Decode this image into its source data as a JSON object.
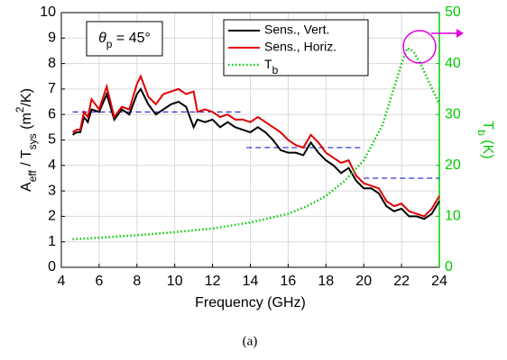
{
  "chart_data": {
    "type": "line",
    "xlabel": "Frequency (GHz)",
    "ylabel": [
      {
        "text": "A"
      },
      {
        "text": "eff",
        "sub": true
      },
      {
        "text": " / T"
      },
      {
        "text": "sys",
        "sub": true
      },
      {
        "text": " (m"
      },
      {
        "text": "2",
        "sup": true
      },
      {
        "text": "/K)"
      }
    ],
    "y2label": [
      {
        "text": "T"
      },
      {
        "text": "b",
        "sub": true
      },
      {
        "text": " (K)"
      }
    ],
    "annotation": [
      {
        "text": "θ",
        "italic": true
      },
      {
        "text": "p",
        "sub": true
      },
      {
        "text": " = 45°"
      }
    ],
    "caption": "(a)",
    "xlim": [
      4,
      24
    ],
    "xticks": [
      4,
      6,
      8,
      10,
      12,
      14,
      16,
      18,
      20,
      22,
      24
    ],
    "ylim": [
      0,
      10
    ],
    "yticks": [
      0,
      1,
      2,
      3,
      4,
      5,
      6,
      7,
      8,
      9,
      10
    ],
    "y2lim": [
      0,
      50
    ],
    "y2ticks": [
      0,
      10,
      20,
      30,
      40,
      50
    ],
    "y2color": "#00cc00",
    "grid": true,
    "legend": "top",
    "x": [
      4.6,
      4.8,
      5.0,
      5.2,
      5.4,
      5.6,
      6.0,
      6.4,
      6.8,
      7.2,
      7.6,
      8.0,
      8.2,
      8.6,
      9.0,
      9.4,
      9.8,
      10.2,
      10.6,
      11.0,
      11.2,
      11.6,
      12.0,
      12.4,
      12.8,
      13.2,
      13.6,
      14.0,
      14.4,
      14.8,
      15.2,
      15.6,
      16.0,
      16.4,
      16.8,
      17.2,
      17.6,
      18.0,
      18.4,
      18.8,
      19.2,
      19.6,
      20.0,
      20.4,
      20.8,
      21.2,
      21.6,
      22.0,
      22.4,
      22.8,
      23.2,
      23.6,
      24.0
    ],
    "series": [
      {
        "name": "Sens., Vert.",
        "color": "#000000",
        "style": "solid",
        "values": [
          5.2,
          5.3,
          5.3,
          5.9,
          5.7,
          6.2,
          6.1,
          6.8,
          5.8,
          6.2,
          6.0,
          6.8,
          7.0,
          6.4,
          6.0,
          6.2,
          6.4,
          6.5,
          6.3,
          5.5,
          5.8,
          5.7,
          5.8,
          5.5,
          5.7,
          5.5,
          5.4,
          5.3,
          5.5,
          5.3,
          5.0,
          4.6,
          4.5,
          4.5,
          4.4,
          4.9,
          4.5,
          4.2,
          4.0,
          3.7,
          3.9,
          3.4,
          3.1,
          3.1,
          2.9,
          2.4,
          2.2,
          2.3,
          2.0,
          2.0,
          1.9,
          2.1,
          2.6
        ]
      },
      {
        "name": "Sens., Horiz.",
        "color": "#e00000",
        "style": "solid",
        "values": [
          5.3,
          5.4,
          5.4,
          6.1,
          5.9,
          6.6,
          6.2,
          7.1,
          5.9,
          6.3,
          6.2,
          7.2,
          7.5,
          6.7,
          6.4,
          6.8,
          6.9,
          7.0,
          6.8,
          6.9,
          6.1,
          6.2,
          6.1,
          5.9,
          6.0,
          5.8,
          5.8,
          5.7,
          5.9,
          5.7,
          5.5,
          5.3,
          5.0,
          4.8,
          4.7,
          5.2,
          4.9,
          4.5,
          4.3,
          4.1,
          4.2,
          3.6,
          3.3,
          3.2,
          3.1,
          2.6,
          2.4,
          2.5,
          2.2,
          2.1,
          2.0,
          2.3,
          2.8
        ]
      },
      {
        "name": [
          {
            "text": "T"
          },
          {
            "text": "b",
            "sub": true
          }
        ],
        "color": "#00cc00",
        "style": "dotted",
        "axis": "y2",
        "x": [
          4.6,
          6,
          8,
          10,
          12,
          14,
          16,
          17,
          18,
          19,
          20,
          21,
          21.5,
          22,
          22.3,
          22.6,
          23,
          23.5,
          24
        ],
        "values": [
          5.5,
          5.8,
          6.3,
          6.9,
          7.6,
          8.8,
          10.5,
          12,
          14,
          17,
          21,
          28,
          34,
          40,
          43,
          42.5,
          40,
          36,
          32
        ]
      }
    ],
    "segments": [
      {
        "x": [
          4.6,
          13.6
        ],
        "value": 6.1,
        "color": "#0000cc"
      },
      {
        "x": [
          13.8,
          20
        ],
        "value": 4.7,
        "color": "#0000cc"
      },
      {
        "x": [
          20,
          24
        ],
        "value": 3.5,
        "color": "#0000cc"
      }
    ]
  }
}
